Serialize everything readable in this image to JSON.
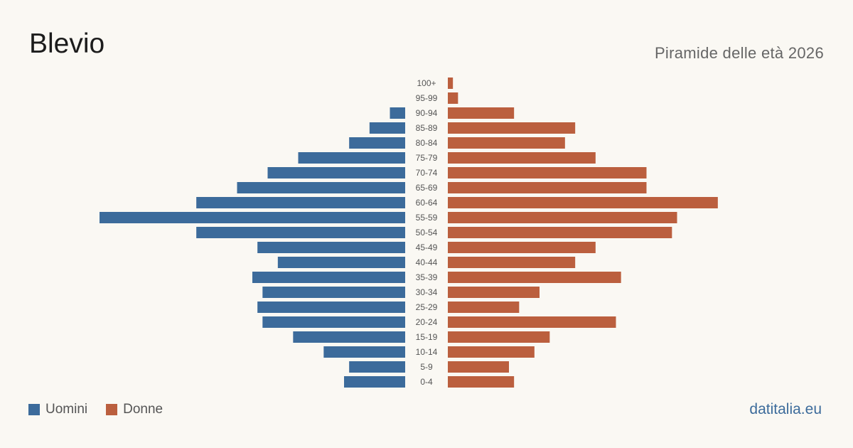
{
  "header": {
    "title": "Blevio",
    "subtitle": "Piramide delle età 2026"
  },
  "legend": {
    "men_label": "Uomini",
    "women_label": "Donne"
  },
  "footer": {
    "brand": "datitalia.eu"
  },
  "colors": {
    "men": "#3c6b9b",
    "women": "#bb5f3e",
    "background": "#faf8f3"
  },
  "chart_data": {
    "type": "bar",
    "orientation": "horizontal-pyramid",
    "title": "Blevio",
    "subtitle": "Piramide delle età 2026",
    "categories": [
      "100+",
      "95-99",
      "90-94",
      "85-89",
      "80-84",
      "75-79",
      "70-74",
      "65-69",
      "60-64",
      "55-59",
      "50-54",
      "45-49",
      "40-44",
      "35-39",
      "30-34",
      "25-29",
      "20-24",
      "15-19",
      "10-14",
      "5-9",
      "0-4"
    ],
    "series": [
      {
        "name": "Uomini",
        "values": [
          0,
          0,
          3,
          7,
          11,
          21,
          27,
          33,
          41,
          60,
          41,
          29,
          25,
          30,
          28,
          29,
          28,
          22,
          16,
          11,
          12
        ]
      },
      {
        "name": "Donne",
        "values": [
          1,
          2,
          13,
          25,
          23,
          29,
          39,
          39,
          53,
          45,
          44,
          29,
          25,
          34,
          18,
          14,
          33,
          20,
          17,
          12,
          13
        ]
      }
    ],
    "xlim": [
      -60,
      60
    ],
    "legend_position": "bottom-left",
    "grid": false
  }
}
